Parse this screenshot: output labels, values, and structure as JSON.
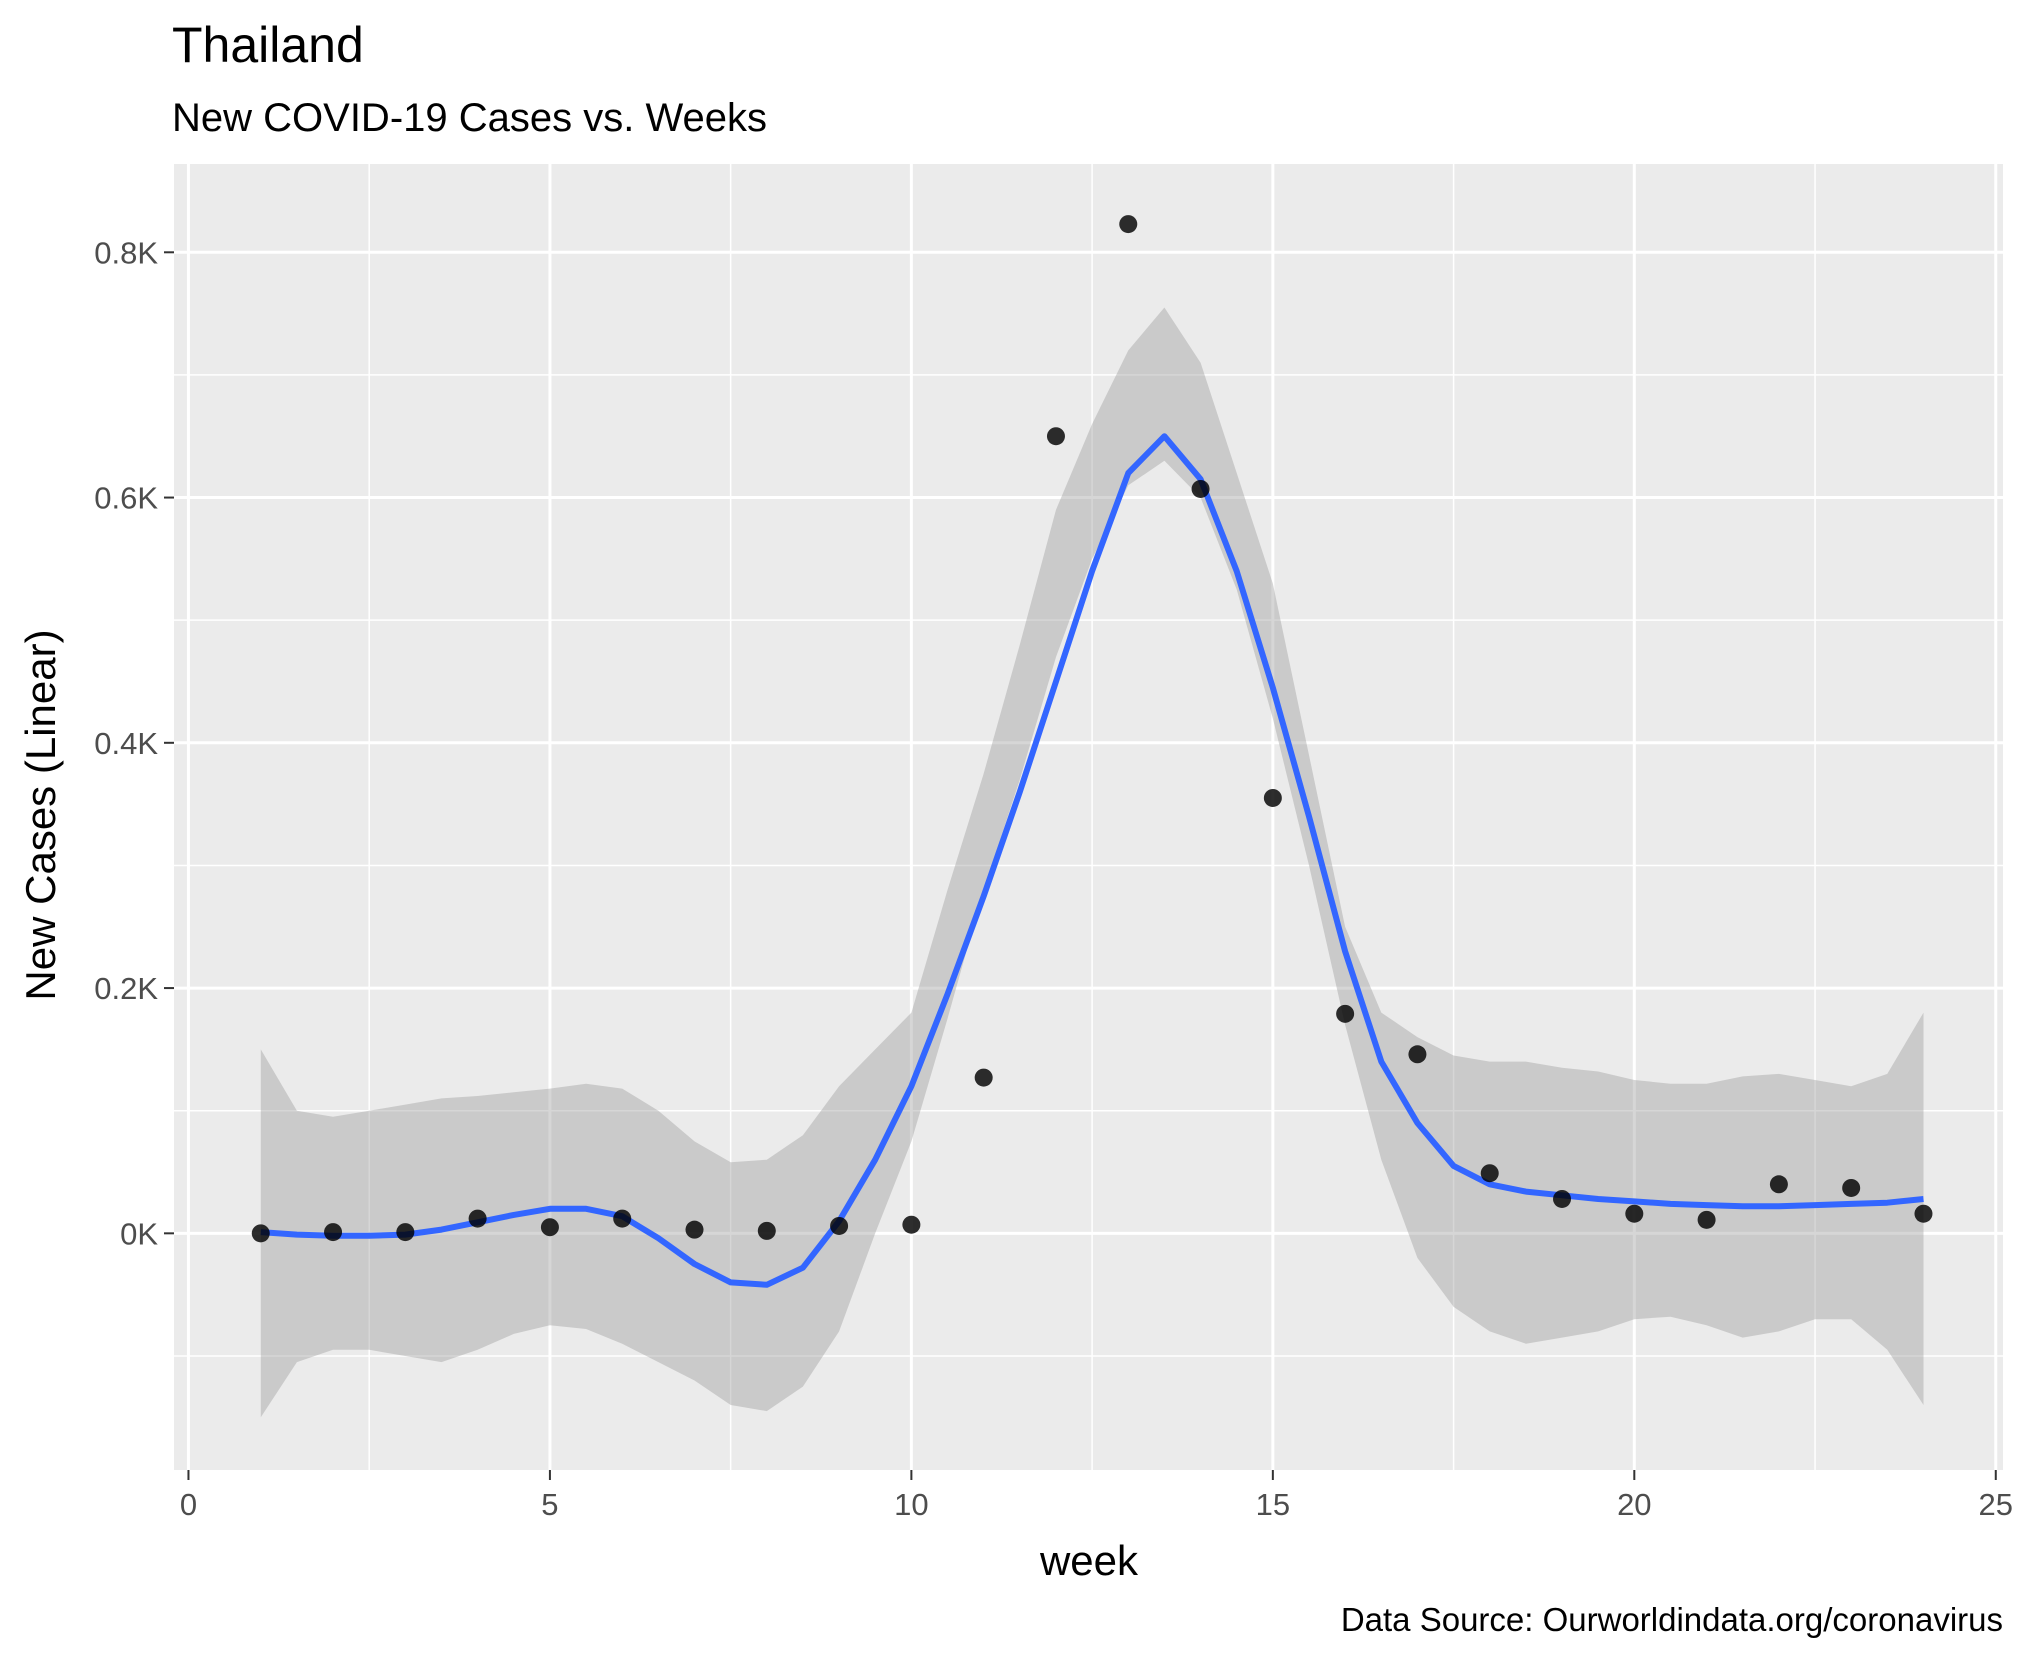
{
  "chart_data": {
    "type": "scatter",
    "title": "Thailand",
    "subtitle": "New COVID-19 Cases vs. Weeks",
    "xlabel": "week",
    "ylabel": "New Cases (Linear)",
    "caption": "Data Source: Ourworldindata.org/coronavirus",
    "xlim": [
      -0.2,
      25.1
    ],
    "ylim": [
      -193,
      872
    ],
    "x_ticks": [
      0,
      5,
      10,
      15,
      20,
      25
    ],
    "x_tick_labels": [
      "0",
      "5",
      "10",
      "15",
      "20",
      "25"
    ],
    "y_ticks": [
      0,
      200,
      400,
      600,
      800
    ],
    "y_tick_labels": [
      "0K",
      "0.2K",
      "0.4K",
      "0.6K",
      "0.8K"
    ],
    "grid": true,
    "series": [
      {
        "kind": "points",
        "x": [
          1,
          2,
          3,
          4,
          5,
          6,
          7,
          8,
          9,
          10,
          11,
          12,
          13,
          14,
          15,
          16,
          17,
          18,
          19,
          20,
          21,
          22,
          23,
          24
        ],
        "y": [
          0,
          1,
          1,
          12,
          5,
          12,
          3,
          2,
          6,
          7,
          127,
          650,
          823,
          607,
          355,
          179,
          146,
          49,
          28,
          16,
          11,
          40,
          37,
          16
        ],
        "color": "#000000"
      },
      {
        "kind": "smooth",
        "x": [
          1,
          1.5,
          2,
          2.5,
          3,
          3.5,
          4,
          4.5,
          5,
          5.5,
          6,
          6.5,
          7,
          7.5,
          8,
          8.5,
          9,
          9.5,
          10,
          10.5,
          11,
          11.5,
          12,
          12.5,
          13,
          13.5,
          14,
          14.5,
          15,
          15.5,
          16,
          16.5,
          17,
          17.5,
          18,
          18.5,
          19,
          19.5,
          20,
          20.5,
          21,
          21.5,
          22,
          22.5,
          23,
          23.5,
          24
        ],
        "y": [
          1,
          -1,
          -2,
          -2,
          -1,
          3,
          9,
          15,
          20,
          20,
          14,
          -4,
          -25,
          -40,
          -42,
          -28,
          10,
          60,
          120,
          195,
          275,
          360,
          450,
          540,
          620,
          650,
          615,
          540,
          445,
          340,
          230,
          140,
          90,
          55,
          40,
          34,
          31,
          28,
          26,
          24,
          23,
          22,
          22,
          23,
          24,
          25,
          28
        ],
        "lower": [
          -150,
          -105,
          -95,
          -95,
          -100,
          -105,
          -95,
          -82,
          -75,
          -78,
          -90,
          -105,
          -120,
          -140,
          -145,
          -125,
          -80,
          0,
          75,
          175,
          280,
          370,
          470,
          550,
          610,
          630,
          600,
          525,
          420,
          300,
          170,
          60,
          -20,
          -60,
          -80,
          -90,
          -85,
          -80,
          -70,
          -68,
          -75,
          -85,
          -80,
          -70,
          -70,
          -95,
          -140
        ],
        "upper": [
          150,
          100,
          95,
          100,
          105,
          110,
          112,
          115,
          118,
          122,
          118,
          100,
          75,
          58,
          60,
          80,
          120,
          150,
          180,
          280,
          375,
          480,
          590,
          660,
          720,
          755,
          710,
          620,
          530,
          390,
          250,
          180,
          160,
          145,
          140,
          140,
          135,
          132,
          125,
          122,
          122,
          128,
          130,
          125,
          120,
          130,
          180
        ],
        "color": "#3366FF",
        "band_color": "#999999"
      }
    ]
  }
}
